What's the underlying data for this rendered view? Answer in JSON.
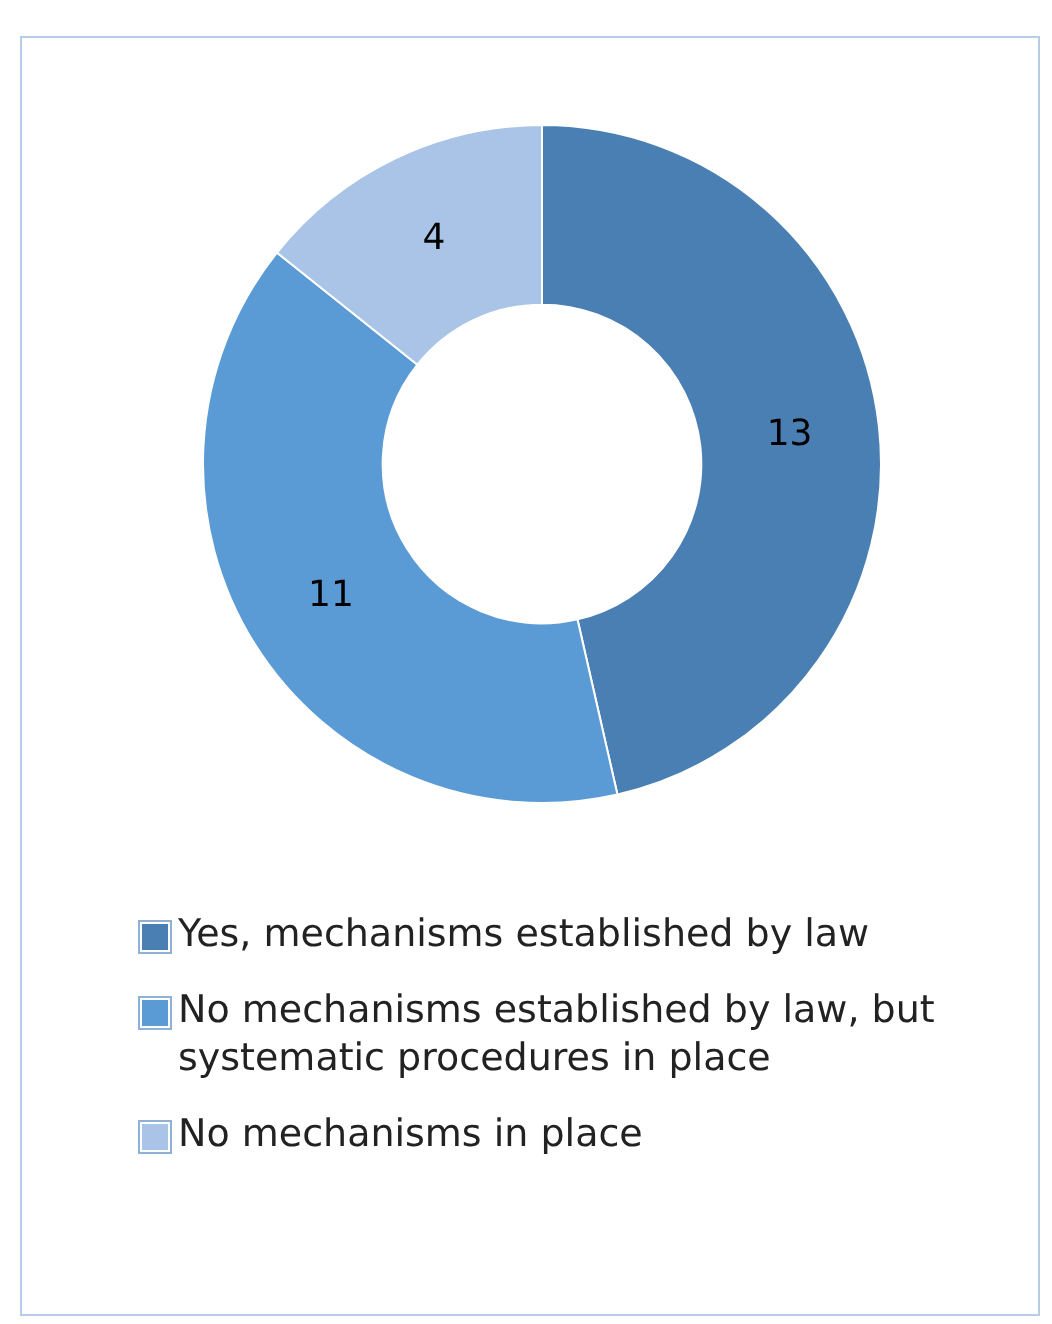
{
  "chart_data": {
    "type": "donut",
    "categories": [
      "Yes, mechanisms established by law",
      "No mechanisms established by law, but systematic procedures in place",
      "No mechanisms in place"
    ],
    "values": [
      13,
      11,
      4
    ],
    "colors": [
      "#4a7fb4",
      "#5b9bd5",
      "#a9c4e7"
    ],
    "data_labels": true,
    "legend": "bottom"
  }
}
